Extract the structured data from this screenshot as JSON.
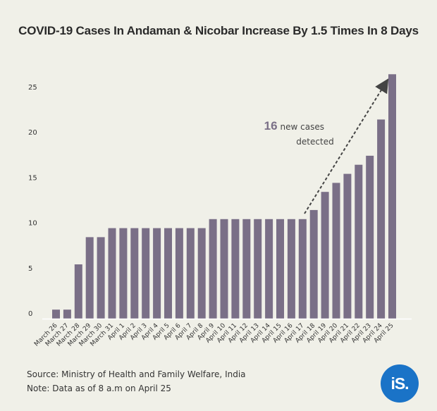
{
  "title": "COVID-19 Cases In Andaman & Nicobar Increase By 1.5 Times In 8 Days",
  "footer": {
    "source": "Source: Ministry of Health and Family Welfare, India",
    "note": "Note: Data as of 8 a.m on April 25"
  },
  "logo": {
    "text": "iS."
  },
  "colors": {
    "bar": "#7a6f87",
    "background": "#f0f0e8",
    "logo": "#1a73c7",
    "annotation_number": "#7a6f87"
  },
  "annotation": {
    "number": "16",
    "text_line1": "new cases",
    "text_line2": "detected"
  },
  "chart_data": {
    "type": "bar",
    "title": "COVID-19 Cases In Andaman & Nicobar Increase By 1.5 Times In 8 Days",
    "xlabel": "",
    "ylabel": "",
    "ylim": [
      0,
      27
    ],
    "yticks": [
      0,
      5,
      10,
      15,
      20,
      25
    ],
    "grid": false,
    "categories": [
      "March 26",
      "March 27",
      "March 28",
      "March 29",
      "March 30",
      "March 31",
      "April 1",
      "April 2",
      "April 3",
      "April 4",
      "April 5",
      "April 6",
      "April 7",
      "April 8",
      "April 9",
      "April 10",
      "April 11",
      "April 12",
      "April 13",
      "April 14",
      "April 15",
      "April 16",
      "April 17",
      "April 18",
      "April 19",
      "April 20",
      "April 21",
      "April 22",
      "April 23",
      "April 24",
      "April 25"
    ],
    "values": [
      1,
      1,
      6,
      9,
      9,
      10,
      10,
      10,
      10,
      10,
      10,
      10,
      10,
      10,
      11,
      11,
      11,
      11,
      11,
      11,
      11,
      11,
      11,
      12,
      14,
      15,
      16,
      17,
      18,
      22,
      27
    ]
  }
}
